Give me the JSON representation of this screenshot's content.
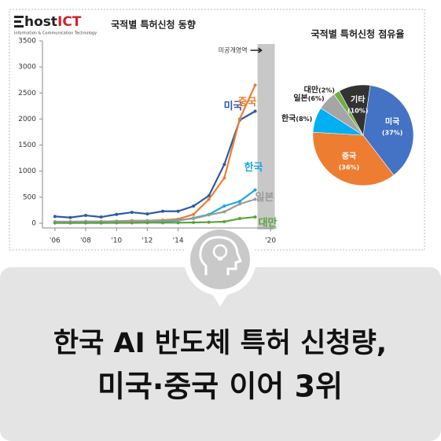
{
  "logo": {
    "name_1": "host",
    "name_2": "ICT",
    "tagline": "Information & Communication Technology"
  },
  "headline": {
    "line_1": "한국 AI 반도체 특허 신청량,",
    "line_2": "미국·중국 이어 3위"
  },
  "chart_data": [
    {
      "type": "line",
      "title": "국적별 특허신청 동향",
      "annotation": "미공개영역",
      "x": [
        2006,
        2007,
        2008,
        2009,
        2010,
        2011,
        2012,
        2013,
        2014,
        2015,
        2016,
        2017,
        2018,
        2019
      ],
      "xlim": [
        2005.6,
        2020.4
      ],
      "xticks": [
        {
          "value": 2006,
          "label": "'06"
        },
        {
          "value": 2008,
          "label": "'08"
        },
        {
          "value": 2010,
          "label": "'10"
        },
        {
          "value": 2012,
          "label": "'12"
        },
        {
          "value": 2014,
          "label": "'14"
        },
        {
          "value": 2020,
          "label": "'20"
        }
      ],
      "ylim": [
        0,
        3500
      ],
      "yticks": [
        0,
        500,
        1000,
        1500,
        2000,
        2500,
        3000,
        3500
      ],
      "series": [
        {
          "name": "미국",
          "color": "#2e59a8",
          "values": [
            130,
            110,
            150,
            120,
            170,
            210,
            180,
            230,
            230,
            330,
            530,
            1130,
            1980,
            2150
          ]
        },
        {
          "name": "중국",
          "color": "#ed7d31",
          "values": [
            20,
            20,
            30,
            30,
            40,
            50,
            50,
            60,
            80,
            170,
            460,
            870,
            2000,
            2650
          ]
        },
        {
          "name": "한국",
          "color": "#1aa7de",
          "values": [
            10,
            10,
            15,
            15,
            20,
            25,
            25,
            30,
            50,
            100,
            170,
            330,
            420,
            640
          ]
        },
        {
          "name": "일본",
          "color": "#9a9a9a",
          "values": [
            30,
            30,
            35,
            35,
            40,
            40,
            45,
            50,
            60,
            90,
            160,
            220,
            370,
            460
          ]
        },
        {
          "name": "대만",
          "color": "#5aa33c",
          "values": [
            5,
            5,
            5,
            5,
            8,
            8,
            10,
            10,
            10,
            15,
            20,
            30,
            90,
            120
          ]
        }
      ]
    },
    {
      "type": "pie",
      "title": "국적별 특허신청 점유율",
      "categories": [
        "미국",
        "중국",
        "한국",
        "일본",
        "대만",
        "기타"
      ],
      "values": [
        37,
        36,
        8,
        6,
        2,
        10
      ],
      "value_labels": [
        "(37%)",
        "(36%)",
        "(8%)",
        "(6%)",
        "(2%)",
        "(10%)"
      ],
      "colors": [
        "#4472c4",
        "#ed7d31",
        "#00b0f0",
        "#a5a5a5",
        "#70ad47",
        "#333333"
      ]
    }
  ]
}
